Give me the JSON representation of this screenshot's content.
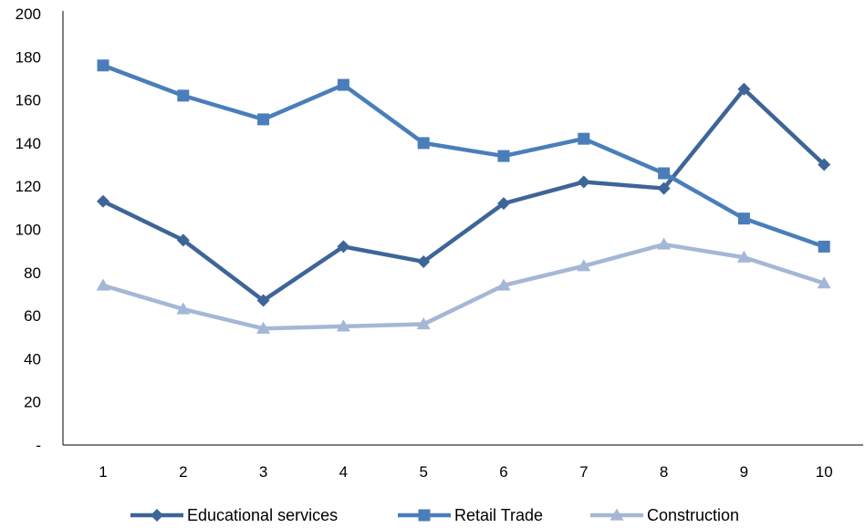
{
  "chart_data": {
    "type": "line",
    "title": "",
    "xlabel": "",
    "ylabel": "",
    "x": [
      1,
      2,
      3,
      4,
      5,
      6,
      7,
      8,
      9,
      10
    ],
    "ylim": [
      0,
      200
    ],
    "y_ticks": [
      "-",
      "20",
      "40",
      "60",
      "80",
      "100",
      "120",
      "140",
      "160",
      "180",
      "200"
    ],
    "grid": false,
    "legend_position": "bottom",
    "series": [
      {
        "name": "Educational services",
        "color": "#3D6597",
        "marker": "diamond",
        "values": [
          113,
          95,
          67,
          92,
          85,
          112,
          122,
          119,
          165,
          130
        ]
      },
      {
        "name": "Retail Trade",
        "color": "#4A7EBB",
        "marker": "square",
        "values": [
          176,
          162,
          151,
          167,
          140,
          134,
          142,
          126,
          105,
          92
        ]
      },
      {
        "name": "Construction",
        "color": "#A5B7D6",
        "marker": "triangle",
        "values": [
          74,
          63,
          54,
          55,
          56,
          74,
          83,
          93,
          87,
          75
        ]
      }
    ]
  }
}
